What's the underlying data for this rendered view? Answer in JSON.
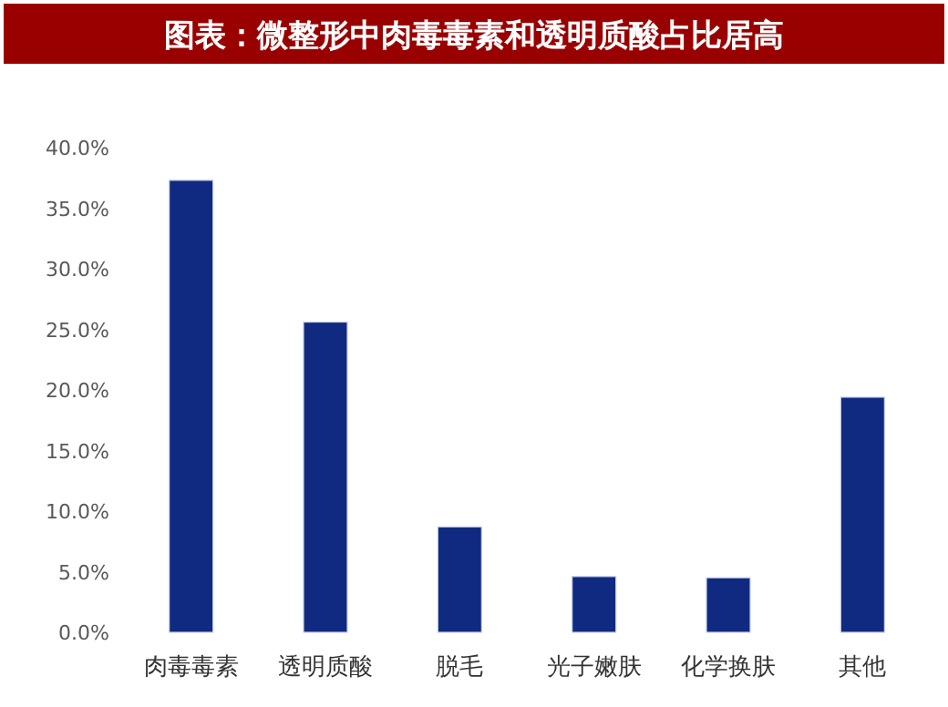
{
  "chart_data": {
    "type": "bar",
    "title": "图表：微整形中肉毒毒素和透明质酸占比居高",
    "categories": [
      "肉毒毒素",
      "透明质酸",
      "脱毛",
      "光子嫩肤",
      "化学换肤",
      "其他"
    ],
    "values": [
      37.3,
      25.6,
      8.7,
      4.6,
      4.5,
      19.4
    ],
    "color": "#0f2a80",
    "ylim": [
      0,
      40
    ],
    "yticks": [
      {
        "value": 0,
        "label": "0.0%"
      },
      {
        "value": 5,
        "label": "5.0%"
      },
      {
        "value": 10,
        "label": "10.0%"
      },
      {
        "value": 15,
        "label": "15.0%"
      },
      {
        "value": 20,
        "label": "20.0%"
      },
      {
        "value": 25,
        "label": "25.0%"
      },
      {
        "value": 30,
        "label": "30.0%"
      },
      {
        "value": 35,
        "label": "35.0%"
      },
      {
        "value": 40,
        "label": "40.0%"
      }
    ],
    "grid": false,
    "legend": false
  }
}
